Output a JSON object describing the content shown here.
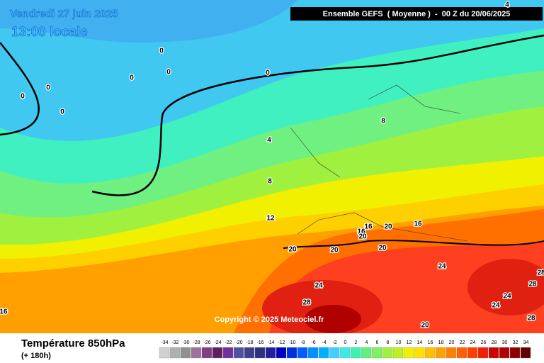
{
  "header": {
    "date": "Vendredi 27 juin 2025",
    "time": "13:00 locale",
    "run": "Ensemble GEFS  ( Moyenne )  -  00 Z du 20/06/2025"
  },
  "footer": {
    "title": "Température 850hPa",
    "lead": "(+ 180h)",
    "copyright": "Copyright © 2025 Meteociel.fr"
  },
  "legend": {
    "values": [
      -34,
      -32,
      -30,
      -28,
      -26,
      -24,
      -22,
      -20,
      -18,
      -16,
      -14,
      -12,
      -10,
      -8,
      -6,
      -4,
      -2,
      0,
      2,
      4,
      6,
      8,
      10,
      12,
      14,
      16,
      18,
      20,
      22,
      24,
      26,
      28,
      30,
      32,
      34
    ],
    "colors": [
      "#d0d0d0",
      "#b0b0b0",
      "#909090",
      "#a070a0",
      "#804080",
      "#602060",
      "#7030a0",
      "#5050a0",
      "#404090",
      "#303080",
      "#2020a0",
      "#0000c0",
      "#0030e0",
      "#0060ff",
      "#0090ff",
      "#00b0ff",
      "#40d0ff",
      "#40e8e8",
      "#40f0b0",
      "#60f080",
      "#80f060",
      "#a0f040",
      "#c0f020",
      "#f0f000",
      "#ffe000",
      "#ffc000",
      "#ffa000",
      "#ff8000",
      "#ff6000",
      "#ff4000",
      "#f02000",
      "#d00000",
      "#b00000",
      "#900000",
      "#600000"
    ]
  },
  "contour_labels": [
    "0",
    "0",
    "0",
    "0",
    "0",
    "0",
    "0",
    "4",
    "4",
    "8",
    "8",
    "12",
    "16",
    "16",
    "16",
    "16",
    "20",
    "20",
    "20",
    "20",
    "20",
    "20",
    "24",
    "24",
    "24",
    "24",
    "28",
    "28",
    "28",
    "28"
  ]
}
